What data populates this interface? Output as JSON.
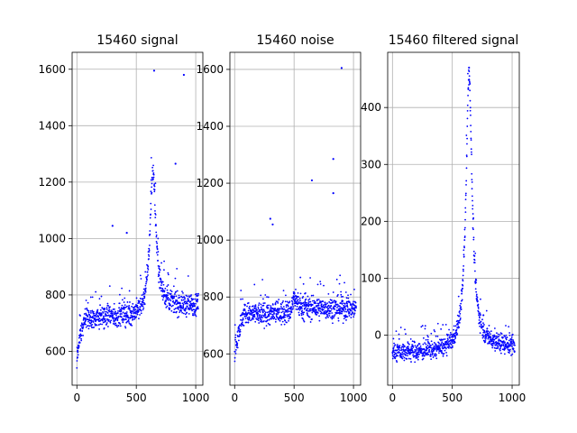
{
  "chart_data": [
    {
      "type": "scatter",
      "title": "15460 signal",
      "xlim": [
        -40,
        1060
      ],
      "ylim": [
        480,
        1660
      ],
      "xticks": [
        0,
        500,
        1000
      ],
      "yticks": [
        600,
        800,
        1000,
        1200,
        1400,
        1600
      ],
      "grid": true,
      "marker_color": "#0000ff",
      "profile": {
        "baseline_start": 540,
        "baseline": 720,
        "rise_end": 80,
        "peak_x": 640,
        "peak_y": 1240,
        "peak_width": 45,
        "tail": 760,
        "noise": 28
      },
      "outliers": [
        {
          "x": 650,
          "y": 1595
        },
        {
          "x": 900,
          "y": 1580
        },
        {
          "x": 830,
          "y": 1265
        },
        {
          "x": 300,
          "y": 1045
        },
        {
          "x": 420,
          "y": 1020
        }
      ]
    },
    {
      "type": "scatter",
      "title": "15460 noise",
      "xlim": [
        -40,
        1060
      ],
      "ylim": [
        490,
        1660
      ],
      "xticks": [
        0,
        500,
        1000
      ],
      "yticks": [
        600,
        800,
        1000,
        1200,
        1400,
        1600
      ],
      "grid": true,
      "marker_color": "#0000ff",
      "profile": {
        "baseline_start": 570,
        "baseline": 740,
        "rise_end": 80,
        "peak_x": 505,
        "peak_y": 800,
        "peak_width": 30,
        "tail": 760,
        "noise": 28
      },
      "outliers": [
        {
          "x": 900,
          "y": 1605
        },
        {
          "x": 830,
          "y": 1285
        },
        {
          "x": 650,
          "y": 1210
        },
        {
          "x": 830,
          "y": 1165
        },
        {
          "x": 300,
          "y": 1075
        },
        {
          "x": 320,
          "y": 1055
        }
      ]
    },
    {
      "type": "scatter",
      "title": "15460 filtered signal",
      "xlim": [
        -40,
        1060
      ],
      "ylim": [
        -88,
        497
      ],
      "xticks": [
        0,
        500,
        1000
      ],
      "yticks": [
        0,
        100,
        200,
        300,
        400
      ],
      "grid": true,
      "marker_color": "#0000ff",
      "profile": {
        "baseline_start": -30,
        "baseline": -30,
        "rise_end": 80,
        "peak_x": 640,
        "peak_y": 460,
        "peak_width": 45,
        "tail": -20,
        "noise": 12
      },
      "outliers": [
        {
          "x": 640,
          "y": 470
        },
        {
          "x": 760,
          "y": 35
        }
      ]
    }
  ]
}
